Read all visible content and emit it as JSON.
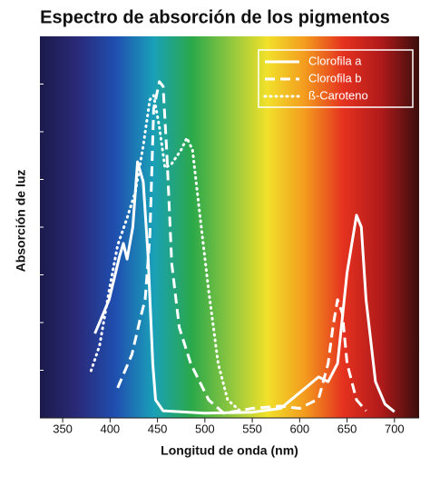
{
  "chart_data": {
    "type": "line",
    "title": "Espectro de absorción de los pigmentos",
    "xlabel": "Longitud de onda (nm)",
    "ylabel": "Absorción de luz",
    "xlim": [
      326,
      726
    ],
    "xticks": [
      350,
      400,
      450,
      500,
      550,
      600,
      650,
      700
    ],
    "ylim": [
      0,
      8
    ],
    "yticks": [
      1,
      2,
      3,
      4,
      5,
      6,
      7
    ],
    "ytick_labels": false,
    "legend": "upper right",
    "series": [
      {
        "name": "Clorofila a",
        "color": "#ffffff",
        "dash": "solid",
        "x": [
          384,
          399,
          410,
          414,
          418,
          424,
          429,
          435,
          440,
          445,
          448,
          456,
          500,
          550,
          580,
          600,
          620,
          630,
          640,
          650,
          660,
          665,
          670,
          680,
          690,
          700
        ],
        "values": [
          1.77,
          2.48,
          3.39,
          3.66,
          3.33,
          4.0,
          5.37,
          4.95,
          3.43,
          1.14,
          0.38,
          0.15,
          0.1,
          0.12,
          0.2,
          0.53,
          0.86,
          0.76,
          1.14,
          3.05,
          4.25,
          4.0,
          2.48,
          0.76,
          0.29,
          0.13
        ]
      },
      {
        "name": "Clorofila b",
        "color": "#ffffff",
        "dash": "dashed",
        "x": [
          408,
          423,
          432,
          437,
          442,
          446,
          452,
          456,
          460,
          465,
          473,
          485,
          504,
          520,
          550,
          580,
          600,
          620,
          630,
          635,
          640,
          645,
          650,
          660,
          670
        ],
        "values": [
          0.63,
          1.33,
          2.1,
          2.48,
          3.81,
          6.48,
          7.05,
          6.95,
          5.52,
          3.24,
          1.9,
          1.14,
          0.38,
          0.1,
          0.2,
          0.25,
          0.2,
          0.4,
          1.14,
          1.9,
          2.48,
          2.19,
          1.14,
          0.38,
          0.15
        ]
      },
      {
        "name": "ß-Caroteno",
        "color": "#ffffff",
        "dash": "dotted",
        "x": [
          380,
          389,
          399,
          408,
          418,
          427,
          435,
          442,
          446,
          452,
          458,
          465,
          475,
          481,
          487,
          494,
          504,
          514,
          524,
          540
        ],
        "values": [
          0.99,
          1.52,
          2.67,
          3.62,
          4.19,
          4.76,
          5.71,
          6.67,
          6.76,
          6.1,
          5.24,
          5.33,
          5.62,
          5.87,
          5.62,
          4.38,
          2.67,
          1.14,
          0.38,
          0.1
        ]
      }
    ]
  }
}
